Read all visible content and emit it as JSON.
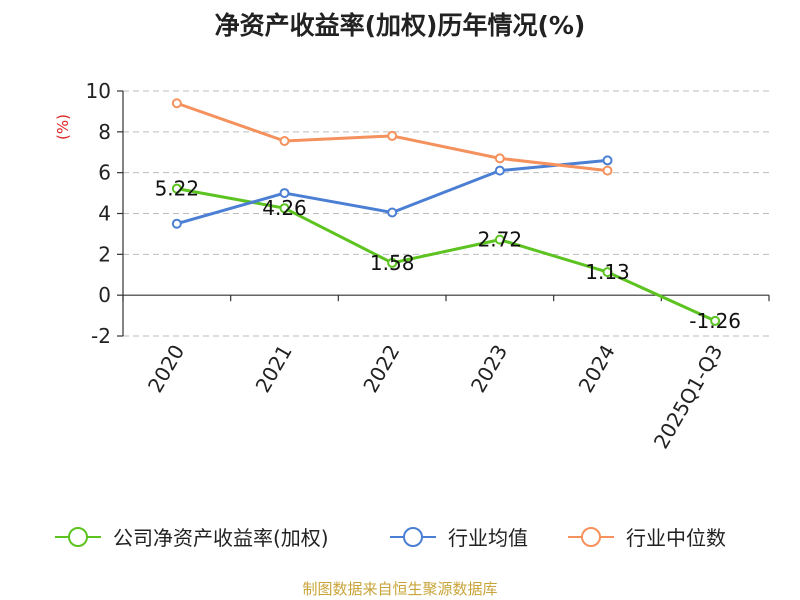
{
  "chart_data": {
    "type": "line",
    "title": "净资产收益率(加权)历年情况(%)",
    "ylabel": "(%)",
    "xlabel": "",
    "categories": [
      "2020",
      "2021",
      "2022",
      "2023",
      "2024",
      "2025Q1-Q3"
    ],
    "ylim": [
      -2,
      10
    ],
    "yticks": [
      -2,
      0,
      2,
      4,
      6,
      8,
      10
    ],
    "grid": true,
    "legend_position": "bottom",
    "series": [
      {
        "name": "公司净资产收益率(加权)",
        "color": "#5cc320",
        "values": [
          5.22,
          4.26,
          1.58,
          2.72,
          1.13,
          -1.26
        ],
        "labels": [
          "5.22",
          "4.26",
          "1.58",
          "2.72",
          "1.13",
          "-1.26"
        ]
      },
      {
        "name": "行业均值",
        "color": "#4b7fd4",
        "values": [
          3.5,
          5.0,
          4.05,
          6.1,
          6.6,
          null
        ]
      },
      {
        "name": "行业中位数",
        "color": "#f5915d",
        "values": [
          9.4,
          7.55,
          7.8,
          6.7,
          6.1,
          null
        ]
      }
    ]
  },
  "source_text": "制图数据来自恒生聚源数据库"
}
